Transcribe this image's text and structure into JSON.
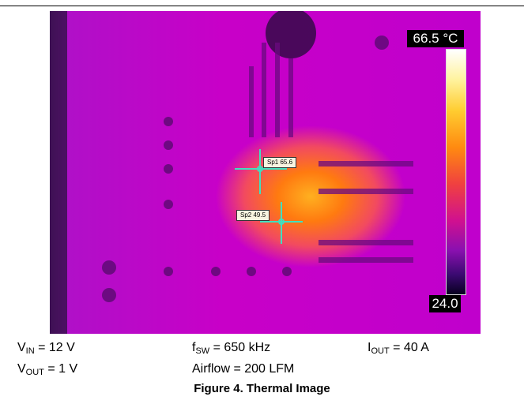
{
  "thermal_image": {
    "scale_max": "66.5 °C",
    "scale_min": "24.0",
    "spots": [
      {
        "label": "Sp1 65.6"
      },
      {
        "label": "Sp2 49.5"
      }
    ]
  },
  "conditions": {
    "vin": {
      "sym": "V",
      "sub": "IN",
      "val": " = 12 V"
    },
    "vout": {
      "sym": "V",
      "sub": "OUT",
      "val": " = 1 V"
    },
    "fsw": {
      "sym": "f",
      "sub": "SW",
      "val": " = 650 kHz"
    },
    "airflow": "Airflow = 200 LFM",
    "iout": {
      "sym": "I",
      "sub": "OUT",
      "val": " = 40 A"
    }
  },
  "caption": "Figure 4. Thermal Image"
}
